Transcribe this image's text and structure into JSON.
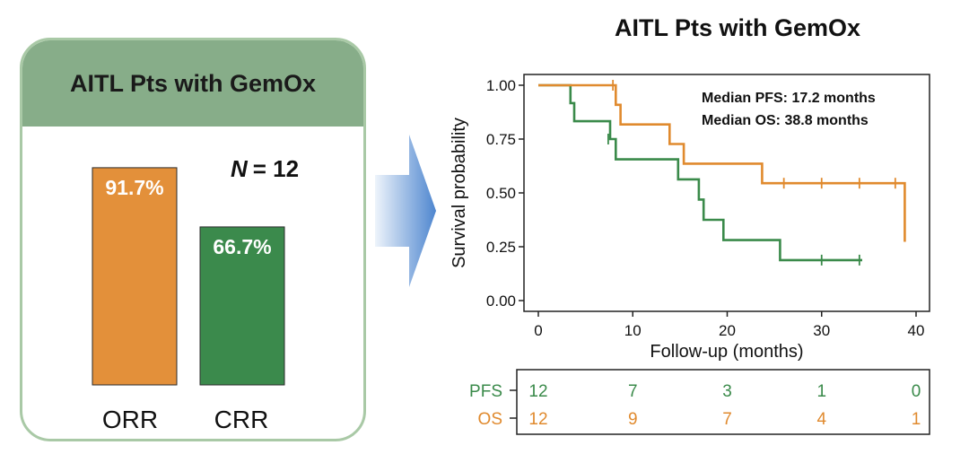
{
  "colors": {
    "pfs": "#3a8a4a",
    "os": "#e08a2e",
    "orr_bar": "#e3903a",
    "crr_bar": "#3b8a4c",
    "panel_border": "#a9c9a6",
    "panel_header": "#87ad89"
  },
  "left_panel": {
    "title": "AITL Pts with GemOx",
    "n_label": "N",
    "n_value": "= 12"
  },
  "km_plot": {
    "title": "AITL Pts with GemOx",
    "median_pfs": "Median PFS: 17.2 months",
    "median_os": "Median OS: 38.8 months"
  },
  "risk_table": {
    "rows": [
      {
        "label": "PFS",
        "counts": [
          "12",
          "7",
          "3",
          "1",
          "0"
        ]
      },
      {
        "label": "OS",
        "counts": [
          "12",
          "9",
          "7",
          "4",
          "1"
        ]
      }
    ]
  },
  "chart_data": [
    {
      "type": "bar",
      "title": "AITL Pts with GemOx",
      "categories": [
        "ORR",
        "CRR"
      ],
      "values": [
        91.7,
        66.7
      ],
      "value_labels": [
        "91.7%",
        "66.7%"
      ],
      "ylim": [
        0,
        100
      ],
      "annotation": "N = 12"
    },
    {
      "type": "line",
      "title": "AITL Pts with GemOx",
      "xlabel": "Follow-up (months)",
      "ylabel": "Survival probability",
      "xlim": [
        0,
        40
      ],
      "ylim": [
        0,
        1
      ],
      "xticks": [
        "0",
        "10",
        "20",
        "30",
        "40"
      ],
      "yticks": [
        "0.00",
        "0.25",
        "0.50",
        "0.75",
        "1.00"
      ],
      "series": [
        {
          "name": "PFS",
          "step": [
            [
              0,
              1.0
            ],
            [
              3.4,
              1.0
            ],
            [
              3.4,
              0.917
            ],
            [
              3.8,
              0.917
            ],
            [
              3.8,
              0.833
            ],
            [
              7.6,
              0.833
            ],
            [
              7.6,
              0.75
            ],
            [
              8.2,
              0.75
            ],
            [
              8.2,
              0.656
            ],
            [
              14.8,
              0.656
            ],
            [
              14.8,
              0.563
            ],
            [
              17.0,
              0.563
            ],
            [
              17.0,
              0.469
            ],
            [
              17.5,
              0.469
            ],
            [
              17.5,
              0.375
            ],
            [
              19.6,
              0.375
            ],
            [
              19.6,
              0.281
            ],
            [
              25.6,
              0.281
            ],
            [
              25.6,
              0.188
            ],
            [
              34.3,
              0.188
            ]
          ],
          "censored": [
            [
              7.4,
              0.75
            ],
            [
              30.0,
              0.188
            ],
            [
              34.0,
              0.188
            ]
          ]
        },
        {
          "name": "OS",
          "step": [
            [
              0,
              1.0
            ],
            [
              8.2,
              1.0
            ],
            [
              8.2,
              0.909
            ],
            [
              8.7,
              0.909
            ],
            [
              8.7,
              0.818
            ],
            [
              13.9,
              0.818
            ],
            [
              13.9,
              0.727
            ],
            [
              15.4,
              0.727
            ],
            [
              15.4,
              0.636
            ],
            [
              23.7,
              0.636
            ],
            [
              23.7,
              0.545
            ],
            [
              38.8,
              0.545
            ],
            [
              38.8,
              0.273
            ]
          ],
          "censored": [
            [
              7.9,
              1.0
            ],
            [
              26.0,
              0.545
            ],
            [
              30.0,
              0.545
            ],
            [
              34.0,
              0.545
            ],
            [
              37.8,
              0.545
            ]
          ]
        }
      ]
    }
  ]
}
